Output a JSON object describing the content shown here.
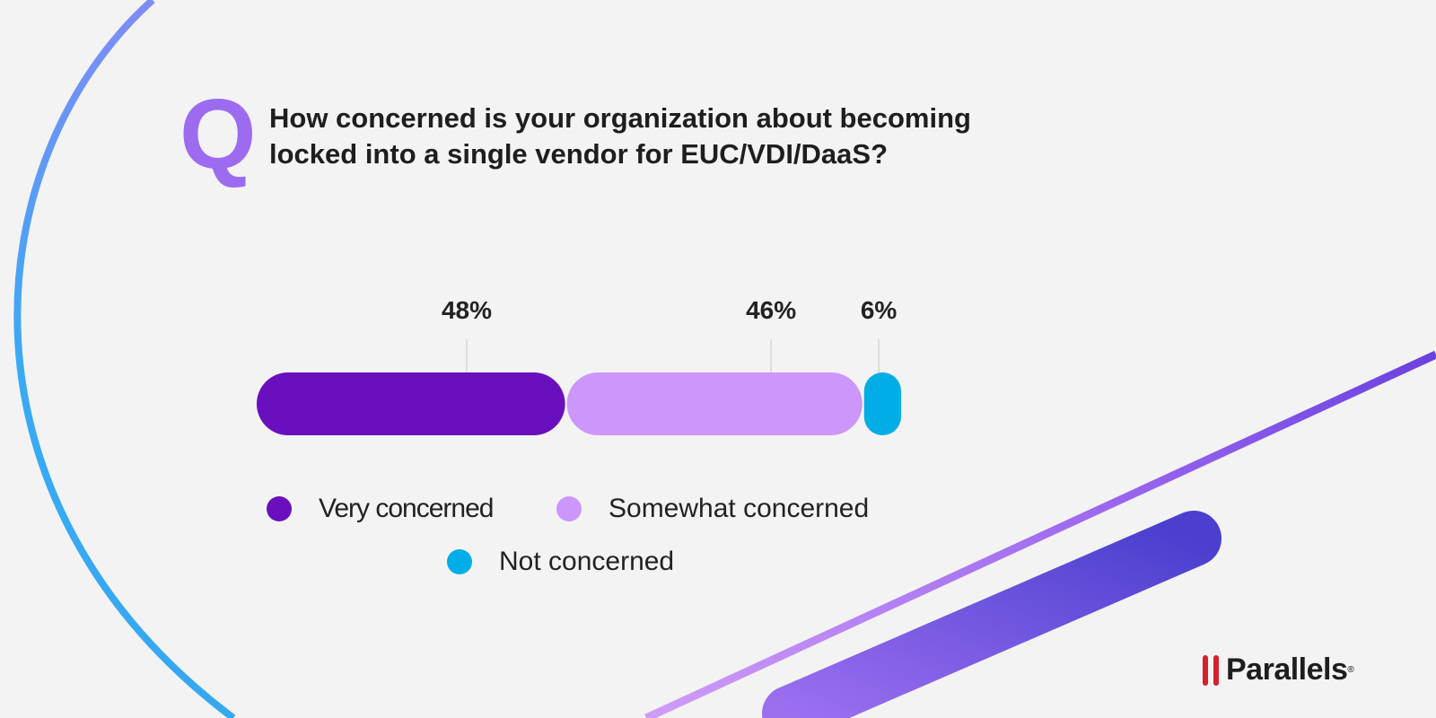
{
  "question_mark": "Q",
  "title_line1": "How concerned is your organization about becoming",
  "title_line2": "locked into a single vendor for EUC/VDI/DaaS?",
  "brand": "Parallels",
  "chart_data": {
    "type": "bar",
    "orientation": "horizontal-stacked",
    "title": "How concerned is your organization about becoming locked into a single vendor for EUC/VDI/DaaS?",
    "categories": [
      "Very concerned",
      "Somewhat concerned",
      "Not concerned"
    ],
    "values": [
      48,
      46,
      6
    ],
    "labels": [
      "48%",
      "46%",
      "6%"
    ],
    "unit": "%",
    "colors": [
      "#6a0fbe",
      "#cc96fa",
      "#00ade6"
    ],
    "legend": "bottom",
    "grid": false
  }
}
